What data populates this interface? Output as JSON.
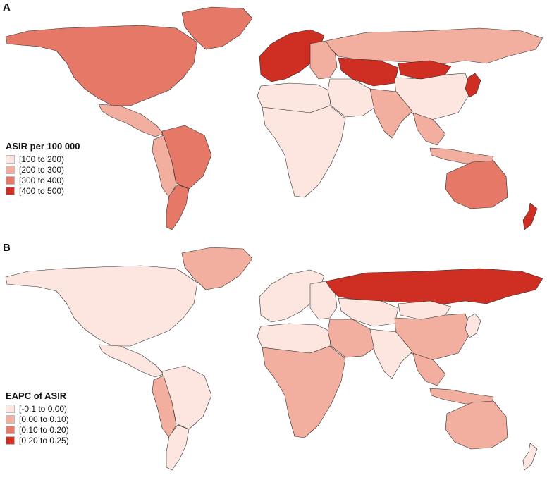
{
  "colors": {
    "c1": "#fde6e0",
    "c2": "#f2ae9f",
    "c3": "#e67868",
    "c4": "#cf2e22"
  },
  "panels": [
    {
      "letter": "A",
      "legend": {
        "title": "ASIR per 100 000",
        "items": [
          {
            "label": "[100 to 200)",
            "color": "#fde6e0"
          },
          {
            "label": "[200 to 300)",
            "color": "#f2ae9f"
          },
          {
            "label": "[300 to 400)",
            "color": "#e67868"
          },
          {
            "label": "[400 to 500)",
            "color": "#cf2e22"
          }
        ]
      },
      "regions": {
        "north_america": "c3",
        "greenland": "c3",
        "central_america": "c2",
        "south_america_north": "c3",
        "south_america_west": "c2",
        "south_america_south": "c3",
        "western_europe": "c4",
        "eastern_europe": "c2",
        "russia": "c2",
        "north_africa": "c1",
        "sub_saharan_africa": "c1",
        "middle_east": "c1",
        "central_asia": "c4",
        "mongolia": "c4",
        "china": "c1",
        "south_asia": "c2",
        "southeast_asia": "c2",
        "japan": "c4",
        "indonesia": "c2",
        "australia": "c3",
        "new_zealand": "c4"
      }
    },
    {
      "letter": "B",
      "legend": {
        "title": "EAPC of ASIR",
        "items": [
          {
            "label": "[-0.1 to 0.00)",
            "color": "#fde6e0"
          },
          {
            "label": "[0.00 to 0.10)",
            "color": "#f2ae9f"
          },
          {
            "label": "[0.10 to 0.20)",
            "color": "#e67868"
          },
          {
            "label": "[0.20 to 0.25)",
            "color": "#cf2e22"
          }
        ]
      },
      "regions": {
        "north_america": "c1",
        "greenland": "c2",
        "central_america": "c1",
        "south_america_north": "c1",
        "south_america_west": "c2",
        "south_america_south": "c1",
        "western_europe": "c1",
        "eastern_europe": "c1",
        "russia": "c4",
        "north_africa": "c1",
        "sub_saharan_africa": "c2",
        "middle_east": "c2",
        "central_asia": "c1",
        "mongolia": "c1",
        "china": "c2",
        "south_asia": "c1",
        "southeast_asia": "c2",
        "japan": "c1",
        "indonesia": "c2",
        "australia": "c2",
        "new_zealand": "c1"
      }
    }
  ]
}
